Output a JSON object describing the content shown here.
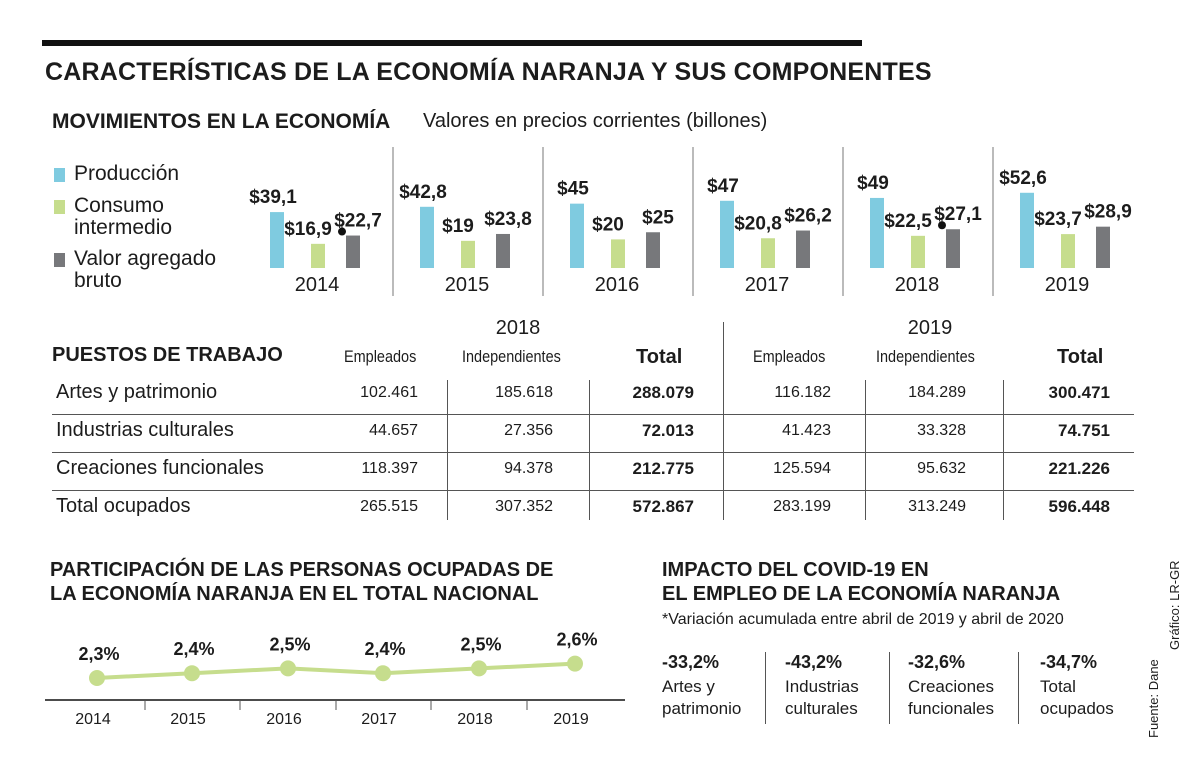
{
  "title": "CARACTERÍSTICAS DE LA ECONOMÍA NARANJA Y SUS COMPONENTES",
  "movements": {
    "heading": "MOVIMIENTOS EN LA ECONOMÍA",
    "subtitle": "Valores en precios corrientes (billones)"
  },
  "legend": [
    {
      "label": "Producción",
      "color": "#7fcbe0"
    },
    {
      "label": "Consumo intermedio",
      "color": "#c6dd8d"
    },
    {
      "label": "Valor agregado bruto",
      "color": "#77787b"
    }
  ],
  "chart_data": [
    {
      "type": "bar",
      "title": "MOVIMIENTOS EN LA ECONOMÍA",
      "subtitle": "Valores en precios corrientes (billones)",
      "categories": [
        "2014",
        "2015",
        "2016",
        "2017",
        "2018",
        "2019"
      ],
      "series": [
        {
          "name": "Producción",
          "color": "#7fcbe0",
          "values": [
            39.1,
            42.8,
            45,
            47,
            49,
            52.6
          ],
          "labels": [
            "$39,1",
            "$42,8",
            "$45",
            "$47",
            "$49",
            "$52,6"
          ]
        },
        {
          "name": "Consumo intermedio",
          "color": "#c6dd8d",
          "values": [
            16.9,
            19,
            20,
            20.8,
            22.5,
            23.7
          ],
          "labels": [
            "$16,9",
            "$19",
            "$20",
            "$20,8",
            "$22,5",
            "$23,7"
          ]
        },
        {
          "name": "Valor agregado bruto",
          "color": "#77787b",
          "values": [
            22.7,
            23.8,
            25,
            26.2,
            27.1,
            28.9
          ],
          "labels": [
            "$22,7",
            "$23,8",
            "$25",
            "$26,2",
            "$27,1",
            "$28,9"
          ]
        }
      ]
    },
    {
      "type": "line",
      "title": "PARTICIPACIÓN DE LAS PERSONAS OCUPADAS DE LA ECONOMÍA NARANJA EN EL TOTAL NACIONAL",
      "categories": [
        "2014",
        "2015",
        "2016",
        "2017",
        "2018",
        "2019"
      ],
      "values": [
        2.3,
        2.4,
        2.5,
        2.4,
        2.5,
        2.6
      ],
      "labels": [
        "2,3%",
        "2,4%",
        "2,5%",
        "2,4%",
        "2,5%",
        "2,6%"
      ],
      "color": "#c6dd8d"
    }
  ],
  "jobs": {
    "heading": "PUESTOS DE TRABAJO",
    "years": [
      "2018",
      "2019"
    ],
    "columns": [
      "Empleados",
      "Independientes",
      "Total",
      "Empleados",
      "Independientes",
      "Total"
    ],
    "rows": [
      {
        "label": "Artes y patrimonio",
        "values": [
          "102.461",
          "185.618",
          "288.079",
          "116.182",
          "184.289",
          "300.471"
        ]
      },
      {
        "label": "Industrias culturales",
        "values": [
          "44.657",
          "27.356",
          "72.013",
          "41.423",
          "33.328",
          "74.751"
        ]
      },
      {
        "label": "Creaciones funcionales",
        "values": [
          "118.397",
          "94.378",
          "212.775",
          "125.594",
          "95.632",
          "221.226"
        ]
      },
      {
        "label": "Total ocupados",
        "values": [
          "265.515",
          "307.352",
          "572.867",
          "283.199",
          "313.249",
          "596.448"
        ]
      }
    ]
  },
  "participation": {
    "title_line1": "PARTICIPACIÓN DE LAS PERSONAS OCUPADAS DE",
    "title_line2": "LA ECONOMÍA NARANJA EN EL TOTAL NACIONAL"
  },
  "covid": {
    "title_line1": "IMPACTO DEL COVID-19 EN",
    "title_line2": "EL EMPLEO DE LA ECONOMÍA NARANJA",
    "subtitle": "*Variación acumulada entre abril de 2019 y abril de 2020",
    "items": [
      {
        "value": "-33,2%",
        "label": "Artes y patrimonio"
      },
      {
        "value": "-43,2%",
        "label": "Industrias culturales"
      },
      {
        "value": "-32,6%",
        "label": "Creaciones funcionales"
      },
      {
        "value": "-34,7%",
        "label": "Total ocupados"
      }
    ]
  },
  "credits": {
    "source": "Fuente: Dane",
    "graphic": "Gráfico: LR-GR"
  }
}
